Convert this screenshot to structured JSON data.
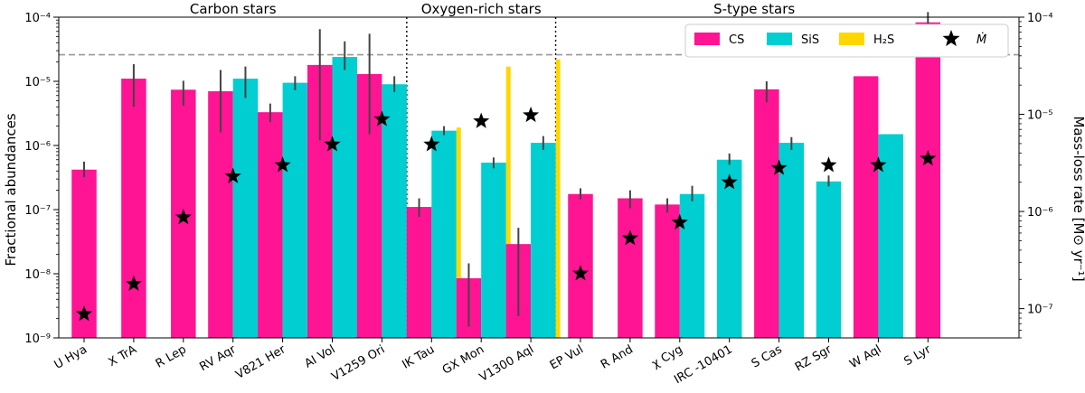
{
  "chart_data": {
    "type": "bar",
    "ylabel": "Fractional abundances",
    "ylabel_right": "Mass-loss rate [M⊙ yr⁻¹]",
    "ylim": [
      1e-09,
      0.0001
    ],
    "y2lim": [
      5e-08,
      0.0001
    ],
    "yscale": "log",
    "yticks": [
      "10⁻⁹",
      "10⁻⁸",
      "10⁻⁷",
      "10⁻⁶",
      "10⁻⁵",
      "10⁻⁴"
    ],
    "y2ticks": [
      "10⁻⁷",
      "10⁻⁶",
      "10⁻⁵",
      "10⁻⁴"
    ],
    "reference_line": 2.6e-05,
    "groups": [
      {
        "title": "Carbon stars",
        "categories": [
          "U Hya",
          "X TrA",
          "R Lep",
          "RV Aqr",
          "V821 Her",
          "AI Vol",
          "V1259 Ori"
        ]
      },
      {
        "title": "Oxygen-rich stars",
        "categories": [
          "IK Tau",
          "GX Mon",
          "V1300 Aql"
        ]
      },
      {
        "title": "S-type stars",
        "categories": [
          "EP Vul",
          "R And",
          "χ Cyg",
          "IRC -10401",
          "S Cas",
          "RZ Sgr",
          "W Aql",
          "S Lyr"
        ]
      }
    ],
    "categories": [
      "U Hya",
      "X TrA",
      "R Lep",
      "RV Aqr",
      "V821 Her",
      "AI Vol",
      "V1259 Ori",
      "IK Tau",
      "GX Mon",
      "V1300 Aql",
      "EP Vul",
      "R And",
      "χ Cyg",
      "IRC -10401",
      "S Cas",
      "RZ Sgr",
      "W Aql",
      "S Lyr"
    ],
    "series": [
      {
        "name": "CS",
        "color": "#ff1493",
        "values": [
          4.2e-07,
          1.1e-05,
          7.4e-06,
          7e-06,
          3.3e-06,
          1.8e-05,
          1.3e-05,
          1.1e-07,
          8.5e-09,
          2.9e-08,
          1.75e-07,
          1.5e-07,
          1.2e-07,
          null,
          7.5e-06,
          null,
          1.2e-05,
          8.3e-05
        ],
        "err_low": [
          3.2e-07,
          4e-06,
          4.2e-06,
          1.6e-06,
          2.3e-06,
          1.2e-06,
          1.5e-06,
          7.7e-08,
          1.5e-09,
          2.2e-09,
          1.45e-07,
          1.05e-07,
          9e-08,
          null,
          4.7e-06,
          null,
          null,
          6.2e-05
        ],
        "err_high": [
          5.6e-07,
          1.85e-05,
          1.02e-05,
          1.5e-05,
          4.5e-06,
          6.5e-05,
          5.5e-05,
          1.5e-07,
          1.45e-08,
          5.2e-08,
          2.15e-07,
          2e-07,
          1.5e-07,
          null,
          1e-05,
          null,
          null,
          0.00012
        ]
      },
      {
        "name": "SiS",
        "color": "#00ced1",
        "values": [
          null,
          null,
          null,
          1.1e-05,
          9.5e-06,
          2.4e-05,
          9e-06,
          1.7e-06,
          5.4e-07,
          1.1e-06,
          null,
          null,
          1.75e-07,
          6e-07,
          1.1e-06,
          2.75e-07,
          1.5e-06,
          null
        ],
        "err_low": [
          null,
          null,
          null,
          5.5e-06,
          7.3e-06,
          1.5e-05,
          6.8e-06,
          1.45e-06,
          4.4e-07,
          8.5e-07,
          null,
          null,
          1.35e-07,
          5e-07,
          8.5e-07,
          2.3e-07,
          null,
          null
        ],
        "err_high": [
          null,
          null,
          null,
          1.7e-05,
          1.2e-05,
          4.2e-05,
          1.2e-05,
          2e-06,
          6.5e-07,
          1.4e-06,
          null,
          null,
          2.35e-07,
          7.5e-07,
          1.35e-06,
          3.4e-07,
          null,
          null
        ]
      },
      {
        "name": "H₂S",
        "color": "#ffd700",
        "values": [
          null,
          null,
          null,
          null,
          null,
          null,
          null,
          1.9e-06,
          1.7e-05,
          2.2e-05,
          null,
          null,
          null,
          null,
          null,
          null,
          null,
          null
        ]
      }
    ],
    "mass_loss": {
      "name": "Ṁ",
      "marker": "star",
      "values": [
        8.8e-08,
        1.8e-07,
        8.7e-07,
        2.3e-06,
        3e-06,
        4.9e-06,
        8.9e-06,
        4.9e-06,
        8.5e-06,
        9.8e-06,
        2.3e-07,
        5.3e-07,
        7.7e-07,
        2e-06,
        2.8e-06,
        3e-06,
        3e-06,
        3.5e-06
      ]
    },
    "legend_position": "top-right"
  }
}
